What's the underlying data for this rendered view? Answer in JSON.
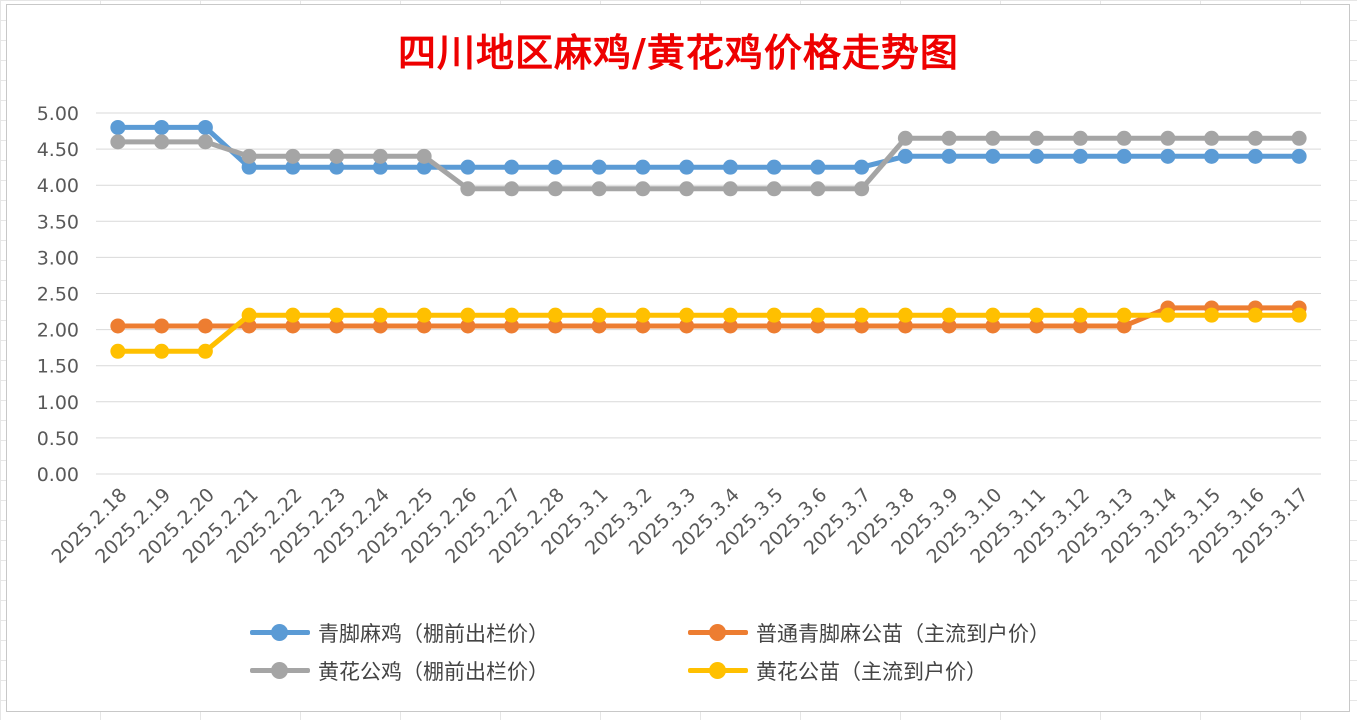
{
  "chart_data": {
    "type": "line",
    "title": "四川地区麻鸡/黄花鸡价格走势图",
    "xlabel": "",
    "ylabel": "",
    "ylim": [
      0,
      5
    ],
    "ytick_step": 0.5,
    "ytick_labels": [
      "0.00",
      "0.50",
      "1.00",
      "1.50",
      "2.00",
      "2.50",
      "3.00",
      "3.50",
      "4.00",
      "4.50",
      "5.00"
    ],
    "grid": true,
    "legend_position": "bottom",
    "categories": [
      "2025.2.18",
      "2025.2.19",
      "2025.2.20",
      "2025.2.21",
      "2025.2.22",
      "2025.2.23",
      "2025.2.24",
      "2025.2.25",
      "2025.2.26",
      "2025.2.27",
      "2025.2.28",
      "2025.3.1",
      "2025.3.2",
      "2025.3.3",
      "2025.3.4",
      "2025.3.5",
      "2025.3.6",
      "2025.3.7",
      "2025.3.8",
      "2025.3.9",
      "2025.3.10",
      "2025.3.11",
      "2025.3.12",
      "2025.3.13",
      "2025.3.14",
      "2025.3.15",
      "2025.3.16",
      "2025.3.17"
    ],
    "series": [
      {
        "name": "青脚麻鸡（棚前出栏价）",
        "color": "#5b9bd5",
        "values": [
          4.8,
          4.8,
          4.8,
          4.25,
          4.25,
          4.25,
          4.25,
          4.25,
          4.25,
          4.25,
          4.25,
          4.25,
          4.25,
          4.25,
          4.25,
          4.25,
          4.25,
          4.25,
          4.4,
          4.4,
          4.4,
          4.4,
          4.4,
          4.4,
          4.4,
          4.4,
          4.4,
          4.4
        ]
      },
      {
        "name": "普通青脚麻公苗（主流到户价）",
        "color": "#ed7d31",
        "values": [
          2.05,
          2.05,
          2.05,
          2.05,
          2.05,
          2.05,
          2.05,
          2.05,
          2.05,
          2.05,
          2.05,
          2.05,
          2.05,
          2.05,
          2.05,
          2.05,
          2.05,
          2.05,
          2.05,
          2.05,
          2.05,
          2.05,
          2.05,
          2.05,
          2.3,
          2.3,
          2.3,
          2.3
        ]
      },
      {
        "name": "黄花公鸡（棚前出栏价）",
        "color": "#a5a5a5",
        "values": [
          4.6,
          4.6,
          4.6,
          4.4,
          4.4,
          4.4,
          4.4,
          4.4,
          3.95,
          3.95,
          3.95,
          3.95,
          3.95,
          3.95,
          3.95,
          3.95,
          3.95,
          3.95,
          4.65,
          4.65,
          4.65,
          4.65,
          4.65,
          4.65,
          4.65,
          4.65,
          4.65,
          4.65
        ]
      },
      {
        "name": "黄花公苗（主流到户价）",
        "color": "#ffc000",
        "values": [
          1.7,
          1.7,
          1.7,
          2.2,
          2.2,
          2.2,
          2.2,
          2.2,
          2.2,
          2.2,
          2.2,
          2.2,
          2.2,
          2.2,
          2.2,
          2.2,
          2.2,
          2.2,
          2.2,
          2.2,
          2.2,
          2.2,
          2.2,
          2.2,
          2.2,
          2.2,
          2.2,
          2.2
        ]
      }
    ]
  }
}
